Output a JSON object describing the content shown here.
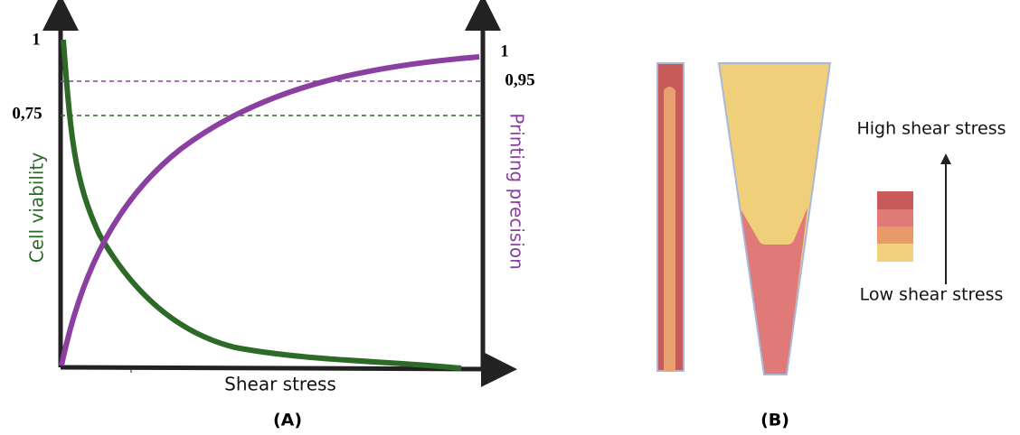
{
  "panel_a": {
    "left_axis": {
      "label": "Cell viability",
      "ticks": [
        "1",
        "0,75"
      ]
    },
    "right_axis": {
      "label": "Printing precision",
      "ticks": [
        "1",
        "0,95"
      ]
    },
    "x_axis": {
      "label": "Shear stress"
    },
    "caption": "(A)"
  },
  "panel_b": {
    "legend": {
      "high": "High shear stress",
      "low": "Low shear stress"
    },
    "caption": "(B)"
  }
}
